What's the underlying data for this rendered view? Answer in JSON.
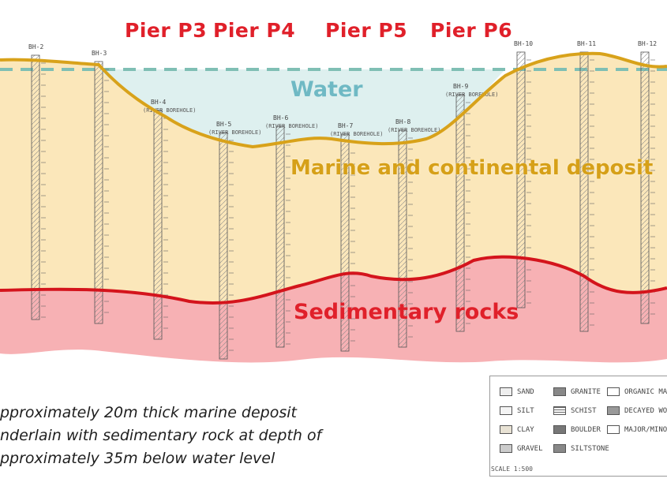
{
  "piers": [
    "Pier P3",
    "Pier P4",
    "Pier P5",
    "Pier P6"
  ],
  "layers": {
    "water": "Water",
    "marine": "Marine and continental deposit",
    "sedimentary": "Sedimentary rocks"
  },
  "boreholes": [
    {
      "id": "BH-2",
      "label": "BH-2"
    },
    {
      "id": "BH-3",
      "label": "BH-3"
    },
    {
      "id": "BH-4",
      "label": "BH-4",
      "note": "(RIVER BOREHOLE)"
    },
    {
      "id": "BH-5",
      "label": "BH-5",
      "note": "(RIVER BOREHOLE)"
    },
    {
      "id": "BH-6",
      "label": "BH-6",
      "note": "(RIVER BOREHOLE)"
    },
    {
      "id": "BH-7",
      "label": "BH-7",
      "note": "(RIVER BOREHOLE)"
    },
    {
      "id": "BH-8",
      "label": "BH-8",
      "note": "(RIVER BOREHOLE)"
    },
    {
      "id": "BH-9",
      "label": "BH-9",
      "note": "(RIVER BOREHOLE)"
    },
    {
      "id": "BH-10",
      "label": "BH-10"
    },
    {
      "id": "BH-11",
      "label": "BH-11"
    },
    {
      "id": "BH-12",
      "label": "BH-12"
    }
  ],
  "notes": [
    "pproximately 20m thick marine deposit",
    "nderlain with sedimentary rock at depth of",
    "pproximately 35m below water level"
  ],
  "legend": [
    "SAND",
    "GRANITE",
    "ORGANIC MATTE",
    "SILT",
    "SCHIST",
    "DECAYED WOOD",
    "CLAY",
    "BOULDER",
    "MAJOR/MINOR",
    "GRAVEL",
    "SILTSTONE"
  ],
  "scale": "SCALE 1:500",
  "colors": {
    "water_fill": "#dcefee",
    "deposit_fill": "#fbe6b6",
    "rock_fill": "#f6a9ac",
    "deposit_line": "#d8a21a",
    "rock_line": "#d4141c",
    "water_line": "#7fbfb4",
    "label_red": "#e0202a"
  }
}
